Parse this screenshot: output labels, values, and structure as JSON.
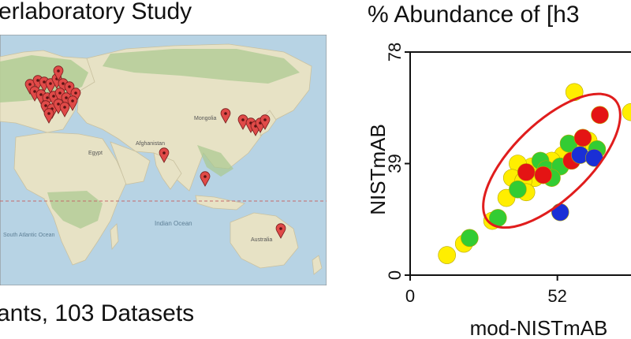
{
  "map_panel": {
    "title": "erlaboratory Study",
    "caption": "ants, 103 Datasets",
    "map_labels": {
      "mongolia": "Mongolia",
      "afghanistan": "Afghanistan",
      "egypt": "Egypt",
      "indian_ocean": "Indian Ocean",
      "south_atlantic": "South Atlantic Ocean",
      "australia": "Australia"
    },
    "colors": {
      "ocean": "#b7d3e4",
      "land": "#e7e2c5",
      "vegetation": "#a9c98e",
      "marker": "#e04a48"
    }
  },
  "chart_data": {
    "type": "scatter",
    "title": "% Abundance of [h3",
    "xlabel": "mod-NISTmAB",
    "ylabel": "NISTmAB",
    "xlim": [
      0,
      78
    ],
    "ylim": [
      0,
      78
    ],
    "xticks": [
      "0",
      "52"
    ],
    "yticks": [
      "0",
      "39",
      "78"
    ],
    "ellipse": {
      "cx": 50,
      "cy": 40,
      "rx": 31,
      "ry": 13.5,
      "angle_deg": 44,
      "color": "#e01d1d"
    },
    "colors": {
      "yellow": "#ffee00",
      "green": "#33cc33",
      "red": "#e41414",
      "blue": "#1a2fd6"
    },
    "points": [
      {
        "x": 58,
        "y": 64,
        "c": "yellow"
      },
      {
        "x": 78,
        "y": 57,
        "c": "yellow"
      },
      {
        "x": 67,
        "y": 56,
        "c": "red"
      },
      {
        "x": 61,
        "y": 48,
        "c": "red"
      },
      {
        "x": 56,
        "y": 46,
        "c": "green"
      },
      {
        "x": 63,
        "y": 47,
        "c": "yellow"
      },
      {
        "x": 59,
        "y": 44,
        "c": "yellow"
      },
      {
        "x": 66,
        "y": 44,
        "c": "green"
      },
      {
        "x": 54,
        "y": 42,
        "c": "yellow"
      },
      {
        "x": 60,
        "y": 42,
        "c": "blue"
      },
      {
        "x": 65,
        "y": 41,
        "c": "blue"
      },
      {
        "x": 50,
        "y": 40,
        "c": "yellow"
      },
      {
        "x": 46,
        "y": 40,
        "c": "green"
      },
      {
        "x": 57,
        "y": 40,
        "c": "red"
      },
      {
        "x": 43,
        "y": 38,
        "c": "yellow"
      },
      {
        "x": 48,
        "y": 37,
        "c": "green"
      },
      {
        "x": 53,
        "y": 38,
        "c": "green"
      },
      {
        "x": 38,
        "y": 39,
        "c": "yellow"
      },
      {
        "x": 41,
        "y": 36,
        "c": "red"
      },
      {
        "x": 36,
        "y": 34,
        "c": "yellow"
      },
      {
        "x": 44,
        "y": 34,
        "c": "yellow"
      },
      {
        "x": 40,
        "y": 33,
        "c": "yellow"
      },
      {
        "x": 47,
        "y": 35,
        "c": "red"
      },
      {
        "x": 50,
        "y": 34,
        "c": "green"
      },
      {
        "x": 38,
        "y": 30,
        "c": "green"
      },
      {
        "x": 41,
        "y": 29,
        "c": "yellow"
      },
      {
        "x": 34,
        "y": 27,
        "c": "yellow"
      },
      {
        "x": 53,
        "y": 22,
        "c": "blue"
      },
      {
        "x": 29,
        "y": 19,
        "c": "yellow"
      },
      {
        "x": 31,
        "y": 20,
        "c": "green"
      },
      {
        "x": 21,
        "y": 13,
        "c": "green"
      },
      {
        "x": 19,
        "y": 11,
        "c": "yellow"
      },
      {
        "x": 13,
        "y": 7,
        "c": "yellow"
      }
    ]
  }
}
